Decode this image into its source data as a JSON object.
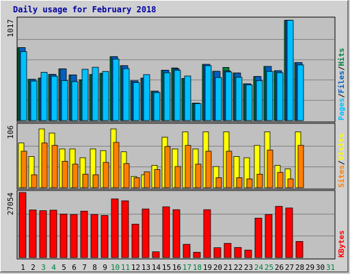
{
  "title": "Daily usage for February 2018",
  "colors": {
    "hits": "#008040",
    "files": "#0060c0",
    "pages": "#00c0ff",
    "visits": "#ffff00",
    "sites": "#ff8000",
    "kbytes": "#ff0000",
    "panel_bg": "#c0c0c0",
    "bg": "#d0d0d0",
    "weekend_label": "#008040",
    "weekday_label": "#000000"
  },
  "chart_data": [
    {
      "type": "bar",
      "name": "usage-top",
      "max_label": "1017",
      "ylim": [
        0,
        1017
      ],
      "right_labels": [
        "Pages",
        "Files",
        "Hits"
      ],
      "categories": [
        "1",
        "2",
        "3",
        "4",
        "5",
        "6",
        "7",
        "8",
        "9",
        "10",
        "11",
        "12",
        "13",
        "14",
        "15",
        "16",
        "17",
        "18",
        "19",
        "20",
        "21",
        "22",
        "23",
        "24",
        "25",
        "26",
        "27",
        "28",
        "29",
        "30",
        "31"
      ],
      "series": [
        {
          "name": "Hits",
          "values": [
            732,
            414,
            426,
            463,
            519,
            458,
            409,
            462,
            474,
            641,
            551,
            399,
            426,
            295,
            505,
            528,
            422,
            175,
            564,
            494,
            533,
            477,
            369,
            442,
            543,
            500,
            1006,
            582,
            0,
            0,
            0
          ]
        },
        {
          "name": "Files",
          "values": [
            732,
            414,
            426,
            463,
            519,
            458,
            405,
            462,
            466,
            641,
            551,
            399,
            426,
            295,
            505,
            520,
            422,
            175,
            564,
            494,
            499,
            477,
            369,
            442,
            543,
            500,
            1006,
            582,
            0,
            0,
            0
          ]
        },
        {
          "name": "Pages",
          "values": [
            692,
            397,
            484,
            445,
            401,
            391,
            515,
            535,
            493,
            617,
            521,
            381,
            461,
            281,
            480,
            504,
            447,
            171,
            551,
            432,
            488,
            434,
            358,
            400,
            493,
            480,
            1006,
            558,
            0,
            0,
            0
          ]
        }
      ]
    },
    {
      "type": "bar",
      "name": "usage-middle",
      "max_label": "106",
      "ylim": [
        0,
        106
      ],
      "right_labels": [
        "Sites",
        "Visits"
      ],
      "categories": [
        "1",
        "2",
        "3",
        "4",
        "5",
        "6",
        "7",
        "8",
        "9",
        "10",
        "11",
        "12",
        "13",
        "14",
        "15",
        "16",
        "17",
        "18",
        "19",
        "20",
        "21",
        "22",
        "23",
        "24",
        "25",
        "26",
        "27",
        "28",
        "29",
        "30",
        "31"
      ],
      "series": [
        {
          "name": "Visits",
          "values": [
            76,
            53,
            100,
            93,
            66,
            66,
            51,
            66,
            63,
            100,
            61,
            19,
            22,
            38,
            86,
            66,
            95,
            66,
            95,
            36,
            95,
            53,
            51,
            72,
            95,
            38,
            32,
            95,
            0,
            0,
            0
          ]
        },
        {
          "name": "Sites",
          "values": [
            62,
            22,
            76,
            72,
            45,
            40,
            23,
            22,
            43,
            77,
            41,
            17,
            27,
            31,
            70,
            36,
            72,
            40,
            62,
            17,
            62,
            17,
            15,
            23,
            64,
            26,
            15,
            72,
            0,
            0,
            0
          ]
        }
      ]
    },
    {
      "type": "bar",
      "name": "usage-bottom",
      "max_label": "27054",
      "ylim": [
        0,
        27054
      ],
      "right_labels": [
        "KBytes"
      ],
      "categories": [
        "1",
        "2",
        "3",
        "4",
        "5",
        "6",
        "7",
        "8",
        "9",
        "10",
        "11",
        "12",
        "13",
        "14",
        "15",
        "16",
        "17",
        "18",
        "19",
        "20",
        "21",
        "22",
        "23",
        "24",
        "25",
        "26",
        "27",
        "28",
        "29",
        "30",
        "31"
      ],
      "series": [
        {
          "name": "KBytes",
          "values": [
            27054,
            19800,
            19500,
            19700,
            18100,
            17900,
            19300,
            17900,
            17500,
            24400,
            23600,
            13900,
            20200,
            2400,
            21100,
            19900,
            5500,
            2200,
            19900,
            4100,
            5900,
            4200,
            3100,
            16400,
            17900,
            21300,
            20600,
            6700,
            0,
            0,
            0
          ]
        }
      ]
    }
  ],
  "weekend_days": [
    3,
    4,
    10,
    11,
    17,
    18,
    24,
    25,
    31
  ]
}
